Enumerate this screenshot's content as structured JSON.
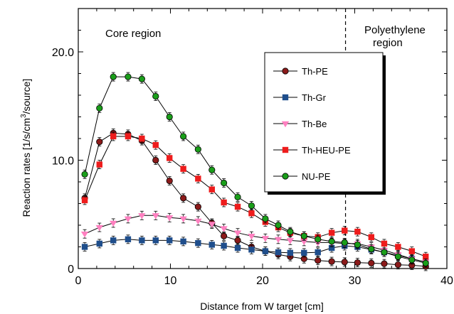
{
  "chart_data": {
    "type": "line",
    "title": "",
    "xlabel": "Distance from W target [cm]",
    "ylabel_parts": {
      "prefix": "Reaction rates [1/s/cm",
      "sup": "3",
      "suffix": "/source]"
    },
    "xlim": [
      0,
      40
    ],
    "ylim": [
      0,
      24
    ],
    "x_ticks": [
      0,
      10,
      20,
      30,
      40
    ],
    "x_tick_labels": [
      "0",
      "10",
      "20",
      "30",
      "40"
    ],
    "y_ticks": [
      0,
      10,
      20
    ],
    "y_tick_labels": [
      "0",
      "10.0",
      "20.0"
    ],
    "grid": false,
    "legend_placement": "upper-right inside",
    "boundary_x": 29,
    "annotations": {
      "core": "Core region",
      "poly_line1": "Polyethylene",
      "poly_line2": "region"
    },
    "series": [
      {
        "name": "Th-PE",
        "color": "#8b1a1a",
        "marker": "circle",
        "x": [
          0.7,
          2.3,
          3.8,
          5.4,
          6.9,
          8.4,
          9.9,
          11.4,
          13.0,
          14.5,
          15.8,
          17.3,
          18.8,
          20.3,
          21.7,
          23.0,
          24.5,
          26.0,
          27.5,
          28.9,
          30.3,
          31.8,
          33.2,
          34.7,
          36.2,
          37.7
        ],
        "y": [
          6.5,
          11.7,
          12.5,
          12.4,
          11.8,
          10.0,
          8.1,
          6.5,
          5.7,
          4.2,
          3.0,
          2.6,
          2.0,
          1.6,
          1.3,
          1.1,
          0.9,
          0.75,
          0.65,
          0.6,
          0.55,
          0.5,
          0.45,
          0.35,
          0.3,
          0.2
        ]
      },
      {
        "name": "Th-Gr",
        "color": "#1f4e8c",
        "marker": "square",
        "x": [
          0.7,
          2.3,
          3.8,
          5.4,
          6.9,
          8.4,
          9.9,
          11.4,
          13.0,
          14.5,
          15.8,
          17.3,
          18.8,
          20.3,
          21.7,
          23.0,
          24.5,
          26.0,
          27.5,
          28.9,
          30.3,
          31.8,
          33.2,
          34.7,
          36.2,
          37.7
        ],
        "y": [
          2.0,
          2.3,
          2.6,
          2.7,
          2.6,
          2.6,
          2.6,
          2.5,
          2.35,
          2.2,
          2.1,
          1.9,
          1.75,
          1.6,
          1.5,
          1.45,
          1.45,
          1.5,
          1.9,
          2.1,
          2.0,
          1.75,
          1.5,
          1.2,
          0.9,
          0.6
        ]
      },
      {
        "name": "Th-Be",
        "color": "#ff80c0",
        "marker": "triangle-down",
        "x": [
          0.7,
          2.3,
          3.8,
          5.4,
          6.9,
          8.4,
          9.9,
          11.4,
          13.0,
          14.5,
          15.8,
          17.3,
          18.8,
          20.3,
          21.7,
          23.0,
          24.5,
          26.0,
          27.5,
          28.9,
          30.3,
          31.8,
          33.2,
          34.7,
          36.2,
          37.7
        ],
        "y": [
          3.2,
          3.8,
          4.2,
          4.6,
          4.9,
          4.9,
          4.7,
          4.6,
          4.4,
          4.1,
          3.7,
          3.3,
          3.0,
          2.8,
          2.7,
          2.6,
          2.5,
          2.4,
          2.4,
          2.3,
          2.3,
          2.0,
          1.7,
          1.3,
          0.9,
          0.6
        ]
      },
      {
        "name": "Th-HEU-PE",
        "color": "#ee1c1c",
        "marker": "square",
        "x": [
          0.7,
          2.3,
          3.8,
          5.4,
          6.9,
          8.4,
          9.9,
          11.4,
          13.0,
          14.5,
          15.8,
          17.3,
          18.8,
          20.3,
          21.7,
          23.0,
          24.5,
          26.0,
          27.5,
          28.9,
          30.3,
          31.8,
          33.2,
          34.7,
          36.2,
          37.7
        ],
        "y": [
          6.3,
          9.6,
          12.2,
          12.2,
          12.0,
          11.4,
          10.2,
          9.2,
          8.3,
          7.3,
          6.1,
          5.7,
          5.1,
          4.3,
          3.8,
          3.3,
          3.0,
          2.9,
          3.3,
          3.5,
          3.4,
          2.9,
          2.3,
          2.0,
          1.6,
          1.1
        ]
      },
      {
        "name": "NU-PE",
        "color": "#1a9e1a",
        "marker": "circle",
        "x": [
          0.7,
          2.3,
          3.8,
          5.4,
          6.9,
          8.4,
          9.9,
          11.4,
          13.0,
          14.5,
          15.8,
          17.3,
          18.8,
          20.3,
          21.7,
          23.0,
          24.5,
          26.0,
          27.5,
          28.9,
          30.3,
          31.8,
          33.2,
          34.7,
          36.2,
          37.7
        ],
        "y": [
          8.7,
          14.8,
          17.7,
          17.7,
          17.5,
          15.9,
          14.0,
          12.2,
          11.0,
          9.1,
          7.9,
          6.6,
          5.8,
          4.6,
          4.0,
          3.4,
          3.0,
          2.7,
          2.5,
          2.4,
          2.2,
          1.8,
          1.5,
          1.1,
          0.8,
          0.5
        ]
      }
    ]
  }
}
